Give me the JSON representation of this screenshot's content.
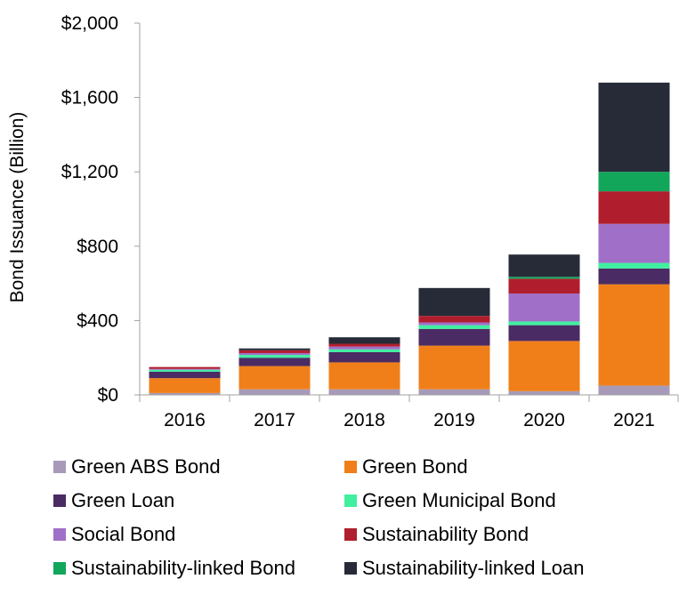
{
  "chart_data": {
    "type": "bar",
    "stacked": true,
    "categories": [
      "2016",
      "2017",
      "2018",
      "2019",
      "2020",
      "2021"
    ],
    "ylabel": "Bond Issuance (Billion)",
    "ylim": [
      0,
      2000
    ],
    "yticks": [
      {
        "value": 0,
        "label": "$0"
      },
      {
        "value": 400,
        "label": "$400"
      },
      {
        "value": 800,
        "label": "$800"
      },
      {
        "value": 1200,
        "label": "$1,200"
      },
      {
        "value": 1600,
        "label": "$1,600"
      },
      {
        "value": 2000,
        "label": "$2,000"
      }
    ],
    "grid": false,
    "legend_position": "bottom",
    "series": [
      {
        "name": "Green ABS Bond",
        "color": "#a79ab8",
        "values": [
          10,
          30,
          30,
          30,
          20,
          50
        ]
      },
      {
        "name": "Green Bond",
        "color": "#f07f1a",
        "values": [
          80,
          125,
          145,
          235,
          270,
          545
        ]
      },
      {
        "name": "Green Loan",
        "color": "#4b2b63",
        "values": [
          35,
          45,
          55,
          90,
          85,
          85
        ]
      },
      {
        "name": "Green Municipal Bond",
        "color": "#40f0a0",
        "values": [
          10,
          15,
          15,
          20,
          20,
          30
        ]
      },
      {
        "name": "Social Bond",
        "color": "#a070c8",
        "values": [
          5,
          10,
          15,
          15,
          150,
          210
        ]
      },
      {
        "name": "Sustainability Bond",
        "color": "#b01e2e",
        "values": [
          10,
          15,
          15,
          35,
          80,
          175
        ]
      },
      {
        "name": "Sustainability-linked Bond",
        "color": "#12a65a",
        "values": [
          0,
          0,
          0,
          0,
          10,
          105
        ]
      },
      {
        "name": "Sustainability-linked Loan",
        "color": "#272b38",
        "values": [
          0,
          10,
          35,
          150,
          120,
          480
        ]
      }
    ]
  }
}
